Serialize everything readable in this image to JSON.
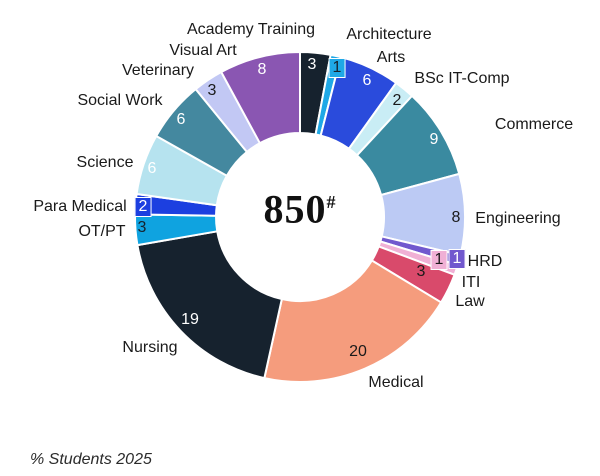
{
  "center": {
    "value": "850",
    "superscript": "#"
  },
  "footer": {
    "note": "% Students 2025"
  },
  "chart_data": {
    "type": "pie",
    "subtype": "donut",
    "title": "",
    "footnote": "% Students 2025",
    "center_label": "850#",
    "order": "alphabetical, clockwise from 12 o'clock",
    "legend_position": "labels outside slices, values inside slices",
    "values_are": "percent of students",
    "total_of_values": 101,
    "segments": [
      {
        "id": "academy-training",
        "name": "Academy Training",
        "value": 3,
        "color": "#16222e",
        "value_color": "#ffffff",
        "boxed": false
      },
      {
        "id": "architecture",
        "name": "Architecture",
        "value": 1,
        "color": "#1fa8e6",
        "value_color": "#16222e",
        "boxed": true
      },
      {
        "id": "arts",
        "name": "Arts",
        "value": 6,
        "color": "#2a4bdc",
        "value_color": "#ffffff",
        "boxed": false
      },
      {
        "id": "bsc-it-comp",
        "name": "BSc IT-Comp",
        "value": 2,
        "color": "#c9edf5",
        "value_color": "#1a1a1a",
        "boxed": false
      },
      {
        "id": "commerce",
        "name": "Commerce",
        "value": 9,
        "color": "#3a8aa0",
        "value_color": "#ffffff",
        "boxed": false
      },
      {
        "id": "engineering",
        "name": "Engineering",
        "value": 8,
        "color": "#bccaf4",
        "value_color": "#1a1a1a",
        "boxed": false
      },
      {
        "id": "hrd",
        "name": "HRD",
        "value": 1,
        "color": "#7158ce",
        "value_color": "#ffffff",
        "boxed": true
      },
      {
        "id": "iti",
        "name": "ITI",
        "value": 1,
        "color": "#f0b0d5",
        "value_color": "#1a1a1a",
        "boxed": true
      },
      {
        "id": "law",
        "name": "Law",
        "value": 3,
        "color": "#d94a6b",
        "value_color": "#1a1a1a",
        "boxed": false
      },
      {
        "id": "medical",
        "name": "Medical",
        "value": 20,
        "color": "#f59c7d",
        "value_color": "#1a1a1a",
        "boxed": false
      },
      {
        "id": "nursing",
        "name": "Nursing",
        "value": 19,
        "color": "#16222e",
        "value_color": "#ffffff",
        "boxed": false
      },
      {
        "id": "ot-pt",
        "name": "OT/PT",
        "value": 3,
        "color": "#0fa3e0",
        "value_color": "#16222e",
        "boxed": false
      },
      {
        "id": "para-medical",
        "name": "Para Medical",
        "value": 2,
        "color": "#1c3fe0",
        "value_color": "#ffffff",
        "boxed": true
      },
      {
        "id": "science",
        "name": "Science",
        "value": 6,
        "color": "#b6e3ef",
        "value_color": "#ffffff",
        "boxed": false
      },
      {
        "id": "social-work",
        "name": "Social Work",
        "value": 6,
        "color": "#44889f",
        "value_color": "#ffffff",
        "boxed": false
      },
      {
        "id": "veterinary",
        "name": "Veterinary",
        "value": 3,
        "color": "#c2c8f4",
        "value_color": "#1a1a1a",
        "boxed": false
      },
      {
        "id": "visual-art",
        "name": "Visual Art",
        "value": 8,
        "color": "#8a56b2",
        "value_color": "#ffffff",
        "boxed": false
      }
    ]
  }
}
